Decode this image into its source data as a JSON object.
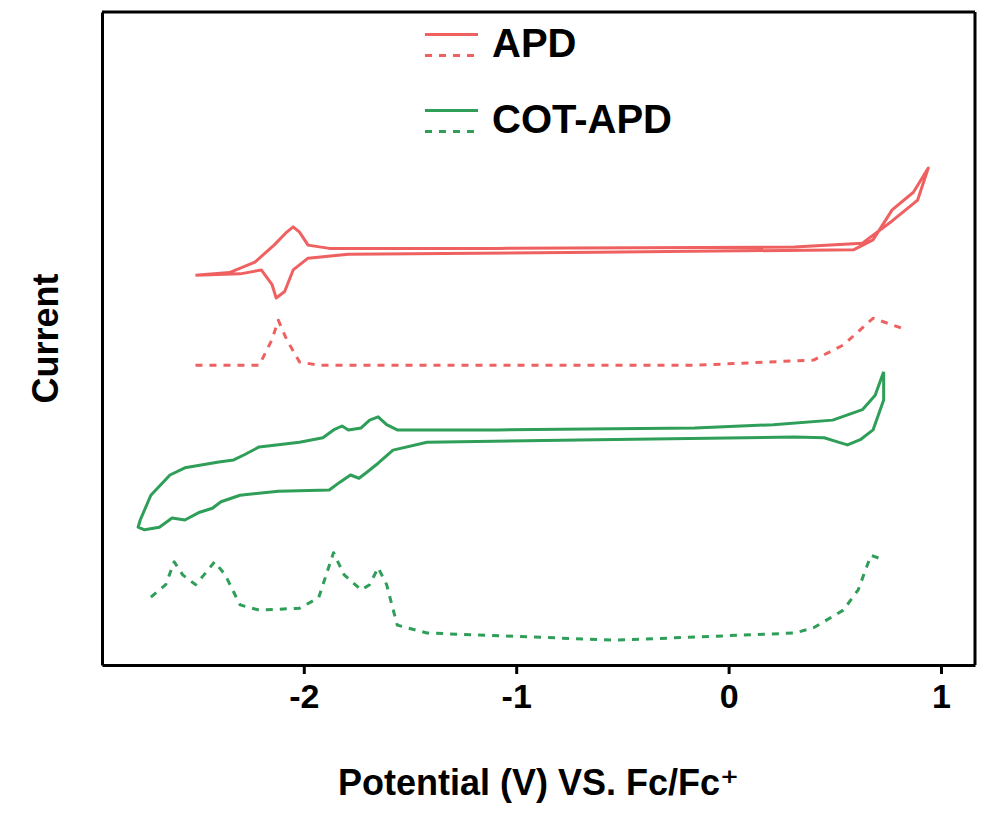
{
  "chart_data": {
    "type": "line",
    "xlabel": "Potential (V) VS. Fc/Fc⁺",
    "ylabel": "Current",
    "xlim": [
      -2.95,
      1.16
    ],
    "xticks": [
      -2,
      -1,
      0,
      1
    ],
    "ylim": [
      0,
      100
    ],
    "tick_labels": "x",
    "legend": "top",
    "series": [
      {
        "name": "APD",
        "color": "#ef6161",
        "line_style": "solid",
        "x": [
          -2.51,
          -2.3,
          -2.2,
          -2.15,
          -2.13,
          -2.09,
          -2.05,
          -1.98,
          -1.79,
          -0.62,
          0.59,
          0.68,
          0.77,
          0.87,
          0.94,
          0.89,
          0.77,
          0.63,
          0.31,
          -1.09,
          -1.88,
          -1.98,
          -2.02,
          -2.05,
          -2.08,
          -2.14,
          -2.23,
          -2.35,
          -2.51
        ],
        "values": [
          59.7,
          59.9,
          60.5,
          58.3,
          56.2,
          57.2,
          60.5,
          62.3,
          62.9,
          63.2,
          63.6,
          65.1,
          69.7,
          72.4,
          76.1,
          71.2,
          68.0,
          64.6,
          64.0,
          63.8,
          63.8,
          64.3,
          66.3,
          67.1,
          66.3,
          64.3,
          61.7,
          60.1,
          59.7
        ]
      },
      {
        "name": "APD",
        "color": "#ef6161",
        "line_style": "dashed",
        "x": [
          -2.51,
          -2.21,
          -2.15,
          -2.12,
          -2.08,
          -2.02,
          -1.93,
          -0.16,
          0.4,
          0.54,
          0.68,
          0.77,
          0.84
        ],
        "values": [
          45.9,
          45.9,
          49.8,
          52.8,
          49.8,
          46.4,
          45.9,
          45.9,
          46.7,
          49.0,
          53.1,
          52.1,
          51.3
        ]
      },
      {
        "name": "COT-APD",
        "color": "#2e9e58",
        "line_style": "solid",
        "x": [
          0.73,
          0.69,
          0.63,
          0.49,
          0.21,
          -0.16,
          -1.09,
          -1.56,
          -1.61,
          -1.65,
          -1.69,
          -1.73,
          -1.79,
          -1.82,
          -1.86,
          -1.91,
          -2.02,
          -2.21,
          -2.28,
          -2.33,
          -2.4,
          -2.49,
          -2.56,
          -2.63,
          -2.72,
          -2.77,
          -2.78,
          -2.75,
          -2.68,
          -2.62,
          -2.56,
          -2.49,
          -2.43,
          -2.39,
          -2.3,
          -2.12,
          -1.88,
          -1.83,
          -1.78,
          -1.74,
          -1.7,
          -1.65,
          -1.58,
          -1.42,
          -0.62,
          0.31,
          0.45,
          0.52,
          0.56,
          0.62,
          0.68,
          0.73,
          0.73
        ],
        "values": [
          44.9,
          41.3,
          39.1,
          37.5,
          36.8,
          36.3,
          36.0,
          36.0,
          36.8,
          38.0,
          37.5,
          36.3,
          36.0,
          36.6,
          36.0,
          34.8,
          34.1,
          33.4,
          32.2,
          31.4,
          31.1,
          30.6,
          30.2,
          29.1,
          26.0,
          22.2,
          21.1,
          20.7,
          21.1,
          22.5,
          22.2,
          23.4,
          24.0,
          25.0,
          26.0,
          26.6,
          26.8,
          28.0,
          29.1,
          28.6,
          29.6,
          30.9,
          32.9,
          34.1,
          34.5,
          34.9,
          34.8,
          34.1,
          33.7,
          34.5,
          36.0,
          40.6,
          44.9
        ]
      },
      {
        "name": "COT-APD",
        "color": "#2e9e58",
        "line_style": "dashed",
        "x": [
          -2.72,
          -2.65,
          -2.61,
          -2.57,
          -2.51,
          -2.47,
          -2.42,
          -2.37,
          -2.3,
          -2.21,
          -2.02,
          -1.93,
          -1.86,
          -1.81,
          -1.73,
          -1.69,
          -1.65,
          -1.61,
          -1.56,
          -1.42,
          -0.53,
          0.31,
          0.4,
          0.54,
          0.61,
          0.67,
          0.73
        ],
        "values": [
          10.4,
          12.3,
          15.8,
          13.8,
          12.3,
          13.8,
          15.8,
          13.8,
          9.2,
          8.4,
          8.7,
          10.3,
          17.2,
          13.8,
          11.5,
          12.3,
          14.9,
          12.3,
          6.1,
          4.9,
          3.8,
          4.9,
          5.7,
          8.4,
          11.5,
          16.8,
          16.1
        ]
      }
    ]
  }
}
